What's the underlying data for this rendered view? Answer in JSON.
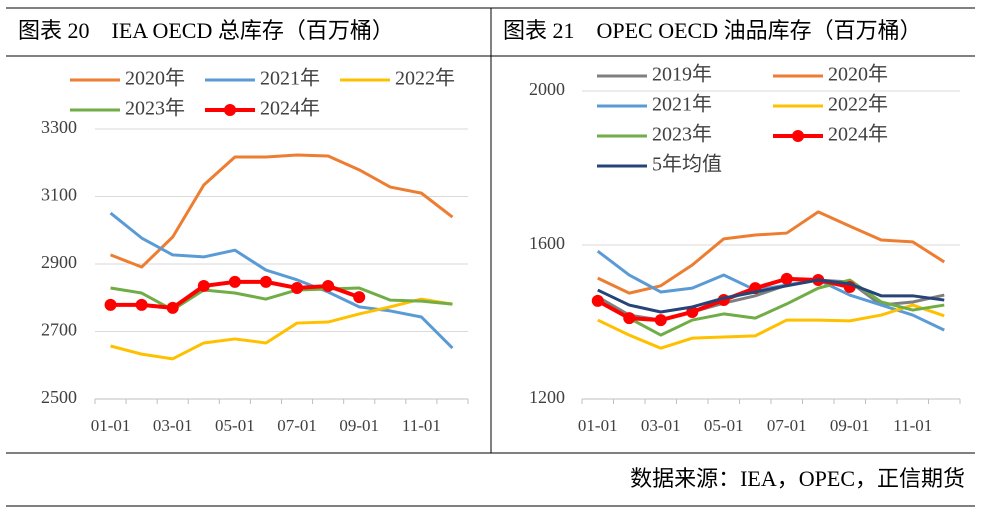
{
  "chart_data": [
    {
      "type": "line",
      "title": "图表 20　IEA OECD 总库存（百万桶）",
      "categories": [
        "01-01",
        null,
        "03-01",
        null,
        "05-01",
        null,
        "07-01",
        null,
        "09-01",
        null,
        "11-01",
        null
      ],
      "ylim": [
        2500,
        3300
      ],
      "yticks": [
        2500,
        2700,
        2900,
        3100,
        3300
      ],
      "grid": true,
      "series": [
        {
          "name": "2020年",
          "color": "#ed7d31",
          "values": [
            2927,
            2891,
            2980,
            3134,
            3217,
            3217,
            3223,
            3220,
            3179,
            3128,
            3110,
            3039
          ]
        },
        {
          "name": "2021年",
          "color": "#5b9bd5",
          "values": [
            3051,
            2977,
            2927,
            2921,
            2941,
            2882,
            2853,
            2817,
            2773,
            2761,
            2743,
            2651
          ]
        },
        {
          "name": "2022年",
          "color": "#ffc000",
          "values": [
            2657,
            2633,
            2619,
            2666,
            2678,
            2666,
            2725,
            2728,
            2752,
            2773,
            2796,
            2781
          ]
        },
        {
          "name": "2023年",
          "color": "#70ad47",
          "values": [
            2829,
            2814,
            2764,
            2823,
            2814,
            2796,
            2823,
            2826,
            2829,
            2793,
            2790,
            2781
          ]
        },
        {
          "name": "2024年",
          "color": "#ff0000",
          "markers": true,
          "values": [
            2779,
            2779,
            2770,
            2835,
            2847,
            2847,
            2829,
            2835,
            2802,
            null,
            null,
            null
          ]
        }
      ]
    },
    {
      "type": "line",
      "title": "图表 21　OPEC OECD 油品库存（百万桶）",
      "categories": [
        "01-01",
        null,
        "03-01",
        null,
        "05-01",
        null,
        "07-01",
        null,
        "09-01",
        null,
        "11-01",
        null
      ],
      "ylim": [
        1200,
        2000
      ],
      "yticks": [
        1200,
        1600,
        2000
      ],
      "grid": true,
      "series": [
        {
          "name": "2019年",
          "color": "#7f7f7f",
          "values": [
            1465,
            1418,
            1405,
            1426,
            1449,
            1468,
            1496,
            1509,
            1504,
            1444,
            1452,
            1470
          ]
        },
        {
          "name": "2020年",
          "color": "#ed7d31",
          "values": [
            1514,
            1475,
            1494,
            1548,
            1616,
            1626,
            1631,
            1686,
            1649,
            1613,
            1608,
            1556
          ]
        },
        {
          "name": "2021年",
          "color": "#5b9bd5",
          "values": [
            1584,
            1522,
            1478,
            1488,
            1522,
            1483,
            1496,
            1509,
            1470,
            1444,
            1418,
            1379
          ]
        },
        {
          "name": "2022年",
          "color": "#ffc000",
          "values": [
            1405,
            1366,
            1332,
            1358,
            1361,
            1364,
            1405,
            1405,
            1403,
            1418,
            1444,
            1416
          ]
        },
        {
          "name": "2023年",
          "color": "#70ad47",
          "values": [
            1457,
            1410,
            1366,
            1405,
            1421,
            1410,
            1447,
            1488,
            1509,
            1452,
            1431,
            1444
          ]
        },
        {
          "name": "2024年",
          "color": "#ff0000",
          "markers": true,
          "values": [
            1455,
            1410,
            1405,
            1426,
            1457,
            1488,
            1512,
            1509,
            1491,
            null,
            null,
            null
          ]
        },
        {
          "name": "5年均值",
          "color": "#264478",
          "values": [
            1483,
            1444,
            1426,
            1439,
            1462,
            1478,
            1494,
            1509,
            1499,
            1468,
            1468,
            1457
          ]
        }
      ]
    }
  ],
  "source": "数据来源：IEA，OPEC，正信期货"
}
